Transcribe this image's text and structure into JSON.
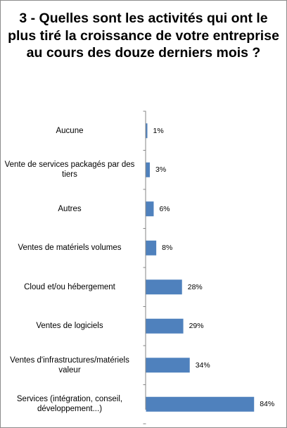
{
  "chart_data": {
    "type": "bar",
    "orientation": "horizontal",
    "title": "3 - Quelles sont les activités qui ont le plus tiré la croissance de votre entreprise au cours des douze derniers mois ?",
    "categories": [
      "Aucune",
      "Vente de services packagés par des tiers",
      "Autres",
      "Ventes de matériels volumes",
      "Cloud et/ou hébergement",
      "Ventes de logiciels",
      "Ventes d'infrastructures/matériels valeur",
      "Services (intégration, conseil, développement...)"
    ],
    "values": [
      1,
      3,
      6,
      8,
      28,
      29,
      34,
      84
    ],
    "value_labels": [
      "1%",
      "3%",
      "6%",
      "8%",
      "28%",
      "29%",
      "34%",
      "84%"
    ],
    "unit": "%",
    "xlim": [
      0,
      100
    ],
    "grid": false,
    "legend": "none",
    "bar_color": "#4f81bd"
  }
}
